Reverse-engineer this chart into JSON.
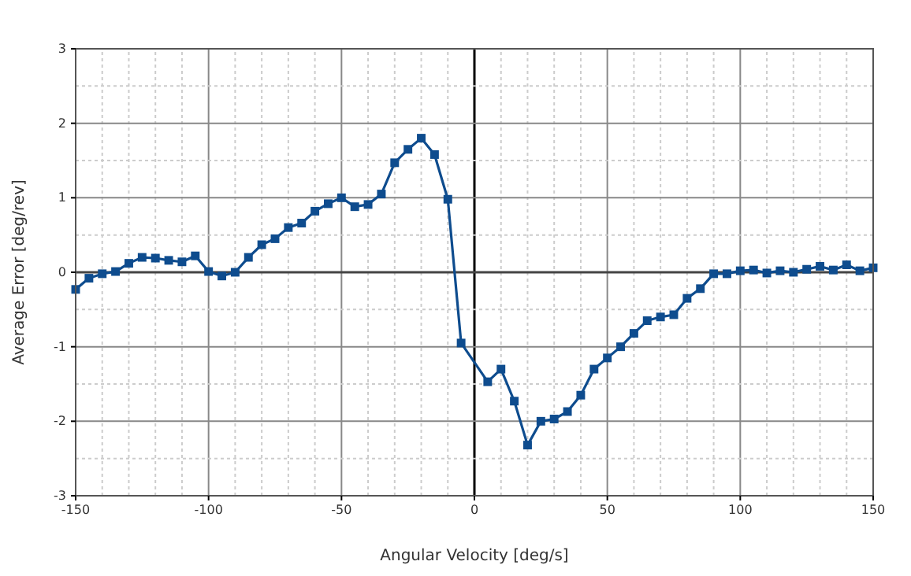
{
  "chart_data": {
    "type": "line",
    "xlabel": "Angular Velocity [deg/s]",
    "ylabel": "Average Error [deg/rev]",
    "x": [
      -150,
      -145,
      -140,
      -135,
      -130,
      -125,
      -120,
      -115,
      -110,
      -105,
      -100,
      -95,
      -90,
      -85,
      -80,
      -75,
      -70,
      -65,
      -60,
      -55,
      -50,
      -45,
      -40,
      -35,
      -30,
      -25,
      -20,
      -15,
      -10,
      -5,
      5,
      10,
      15,
      20,
      25,
      30,
      35,
      40,
      45,
      50,
      55,
      60,
      65,
      70,
      75,
      80,
      85,
      90,
      95,
      100,
      105,
      110,
      115,
      120,
      125,
      130,
      135,
      140,
      145,
      150
    ],
    "series": [
      {
        "color": "#0e4c8e",
        "values": [
          -0.23,
          -0.08,
          -0.02,
          0.01,
          0.12,
          0.2,
          0.19,
          0.16,
          0.14,
          0.22,
          0.01,
          -0.05,
          0.0,
          0.2,
          0.37,
          0.45,
          0.6,
          0.66,
          0.82,
          0.92,
          1.0,
          0.88,
          0.91,
          1.05,
          1.47,
          1.65,
          1.8,
          1.58,
          0.98,
          -0.95,
          -1.47,
          -1.3,
          -1.73,
          -2.32,
          -2.0,
          -1.97,
          -1.87,
          -1.65,
          -1.3,
          -1.15,
          -1.0,
          -0.82,
          -0.65,
          -0.6,
          -0.57,
          -0.35,
          -0.22,
          -0.02,
          -0.02,
          0.02,
          0.03,
          -0.01,
          0.02,
          0.0,
          0.04,
          0.08,
          0.03,
          0.1,
          0.02,
          0.06
        ]
      }
    ],
    "xlim": [
      -150,
      150
    ],
    "ylim": [
      -3,
      3
    ],
    "xticks": [
      -150,
      -100,
      -50,
      0,
      50,
      100,
      150
    ],
    "yticks": [
      -3,
      -2,
      -1,
      0,
      1,
      2,
      3
    ],
    "grid": true,
    "marker": "square",
    "line_style": "solid"
  }
}
